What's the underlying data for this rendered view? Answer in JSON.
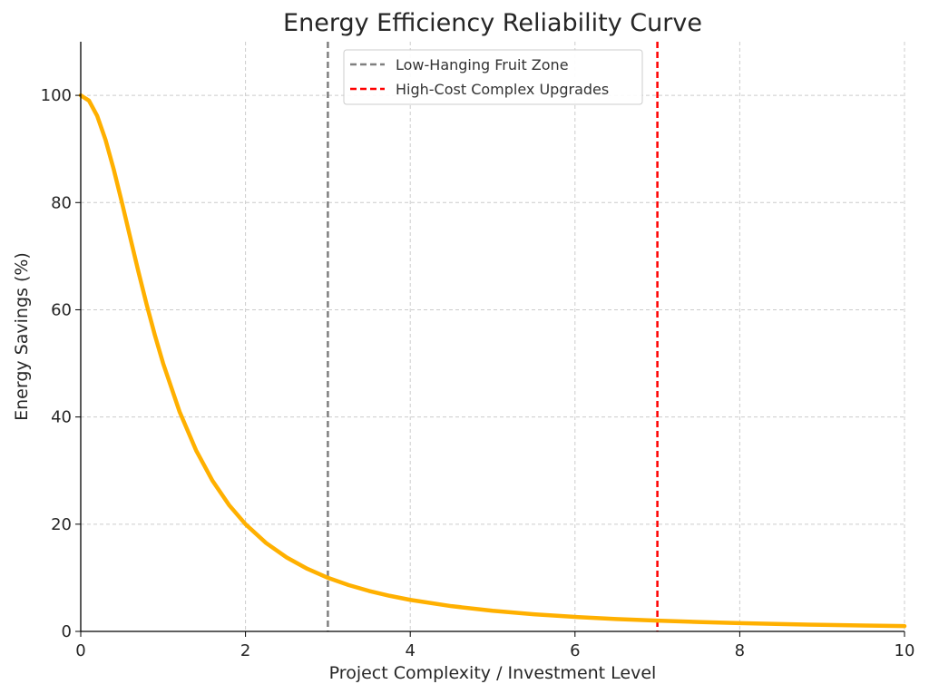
{
  "chart_data": {
    "type": "line",
    "title": "Energy Efficiency Reliability Curve",
    "xlabel": "Project Complexity / Investment Level",
    "ylabel": "Energy Savings (%)",
    "xlim": [
      0,
      10
    ],
    "ylim": [
      0,
      110
    ],
    "xticks": [
      0,
      2,
      4,
      6,
      8,
      10
    ],
    "yticks": [
      0,
      20,
      40,
      60,
      80,
      100
    ],
    "grid": true,
    "legend_position": "top-center",
    "series": [
      {
        "name": "Energy Savings",
        "color": "#FFB000",
        "x": [
          0,
          0.1,
          0.2,
          0.3,
          0.4,
          0.5,
          0.6,
          0.7,
          0.8,
          0.9,
          1.0,
          1.2,
          1.4,
          1.6,
          1.8,
          2.0,
          2.25,
          2.5,
          2.75,
          3.0,
          3.25,
          3.5,
          3.75,
          4.0,
          4.5,
          5.0,
          5.5,
          6.0,
          6.5,
          7.0,
          7.5,
          8.0,
          8.5,
          9.0,
          9.5,
          10.0
        ],
        "values": [
          100,
          99.01,
          96.15,
          91.74,
          86.21,
          80.0,
          73.53,
          67.11,
          60.98,
          55.25,
          50.0,
          40.98,
          33.78,
          28.09,
          23.58,
          20.0,
          16.49,
          13.79,
          11.68,
          10.0,
          8.65,
          7.55,
          6.64,
          5.88,
          4.71,
          3.85,
          3.2,
          2.7,
          2.31,
          2.0,
          1.75,
          1.54,
          1.37,
          1.22,
          1.1,
          0.99
        ]
      }
    ],
    "vlines": [
      {
        "name": "Low-Hanging Fruit Zone",
        "x": 3,
        "color": "#7f7f7f"
      },
      {
        "name": "High-Cost Complex Upgrades",
        "x": 7,
        "color": "#ff0000"
      }
    ]
  }
}
